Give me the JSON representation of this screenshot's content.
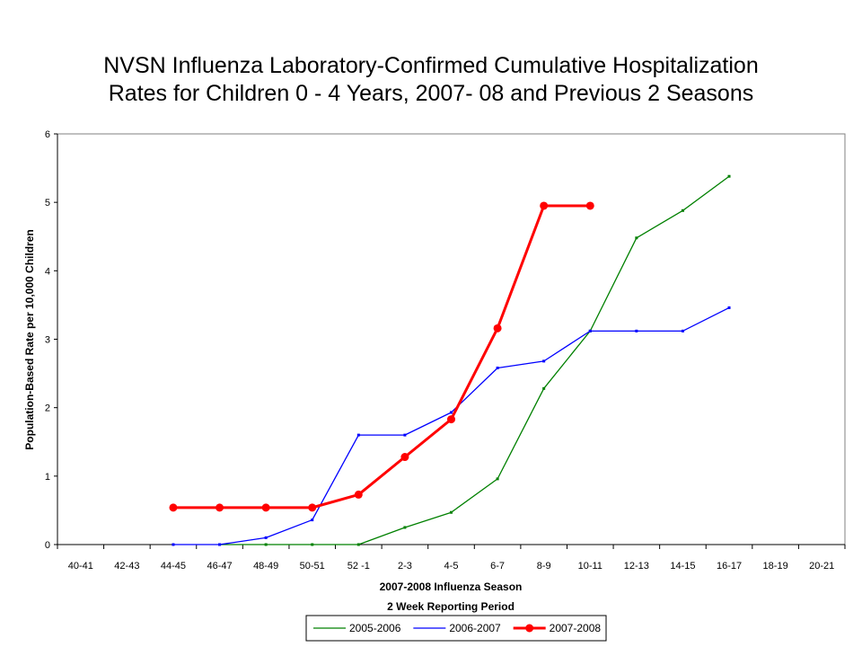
{
  "chart_data": {
    "type": "line",
    "title": [
      "NVSN Influenza Laboratory-Confirmed Cumulative Hospitalization",
      "Rates for Children 0 - 4 Years, 2007- 08 and Previous 2 Seasons"
    ],
    "xlabel": [
      "2007-2008 Influenza Season",
      "2 Week Reporting Period"
    ],
    "ylabel": "Population-Based Rate per 10,000 Children",
    "categories": [
      "40-41",
      "42-43",
      "44-45",
      "46-47",
      "48-49",
      "50-51",
      "52 -1",
      "2-3",
      "4-5",
      "6-7",
      "8-9",
      "10-11",
      "12-13",
      "14-15",
      "16-17",
      "18-19",
      "20-21"
    ],
    "ylim": [
      0,
      6
    ],
    "yticks": [
      "0",
      "1",
      "2",
      "3",
      "4",
      "5",
      "6"
    ],
    "grid": false,
    "legend_position": "bottom",
    "series": [
      {
        "name": "2005-2006",
        "color": "#008000",
        "stroke_style": "thin",
        "values": [
          null,
          null,
          null,
          0,
          0,
          0,
          0,
          0.25,
          0.47,
          0.96,
          2.28,
          3.12,
          4.48,
          4.88,
          5.38,
          null,
          null
        ]
      },
      {
        "name": "2006-2007",
        "color": "#0000ff",
        "stroke_style": "thin",
        "values": [
          null,
          null,
          0,
          0,
          0.1,
          0.36,
          1.6,
          1.6,
          1.93,
          2.58,
          2.68,
          3.12,
          3.12,
          3.12,
          3.46,
          null,
          null
        ]
      },
      {
        "name": "2007-2008",
        "color": "#ff0000",
        "stroke_style": "thick-with-markers",
        "values": [
          null,
          null,
          0.54,
          0.54,
          0.54,
          0.54,
          0.73,
          1.28,
          1.83,
          3.16,
          4.95,
          4.95,
          null,
          null,
          null,
          null,
          null
        ]
      }
    ]
  }
}
